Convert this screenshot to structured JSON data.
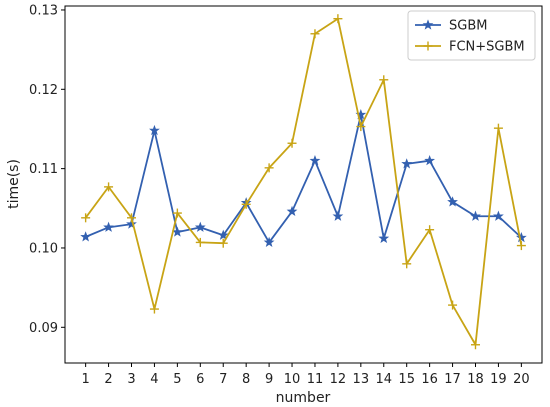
{
  "chart_data": {
    "type": "line",
    "title": "",
    "xlabel": "number",
    "ylabel": "time(s)",
    "x": [
      1,
      2,
      3,
      4,
      5,
      6,
      7,
      8,
      9,
      10,
      11,
      12,
      13,
      14,
      15,
      16,
      17,
      18,
      19,
      20
    ],
    "xlim": [
      0.1,
      20.9
    ],
    "ylim": [
      0.0855,
      0.1305
    ],
    "yticks": [
      0.09,
      0.1,
      0.11,
      0.12,
      0.13
    ],
    "ytick_labels": [
      "0.09",
      "0.10",
      "0.11",
      "0.12",
      "0.13"
    ],
    "grid": false,
    "legend_position": "upper right",
    "series": [
      {
        "name": "SGBM",
        "color": "#3360b0",
        "marker": "star",
        "values": [
          0.1014,
          0.1026,
          0.103,
          0.1148,
          0.102,
          0.1026,
          0.1016,
          0.1057,
          0.1007,
          0.1046,
          0.111,
          0.104,
          0.1168,
          0.1012,
          0.1106,
          0.111,
          0.1058,
          0.104,
          0.104,
          0.1013
        ]
      },
      {
        "name": "FCN+SGBM",
        "color": "#c8a415",
        "marker": "plus",
        "values": [
          0.1038,
          0.1077,
          0.1038,
          0.0923,
          0.1044,
          0.1007,
          0.1006,
          0.1055,
          0.1101,
          0.1132,
          0.127,
          0.1289,
          0.1153,
          0.1212,
          0.098,
          0.1023,
          0.0928,
          0.0878,
          0.1151,
          0.1003
        ]
      }
    ]
  }
}
